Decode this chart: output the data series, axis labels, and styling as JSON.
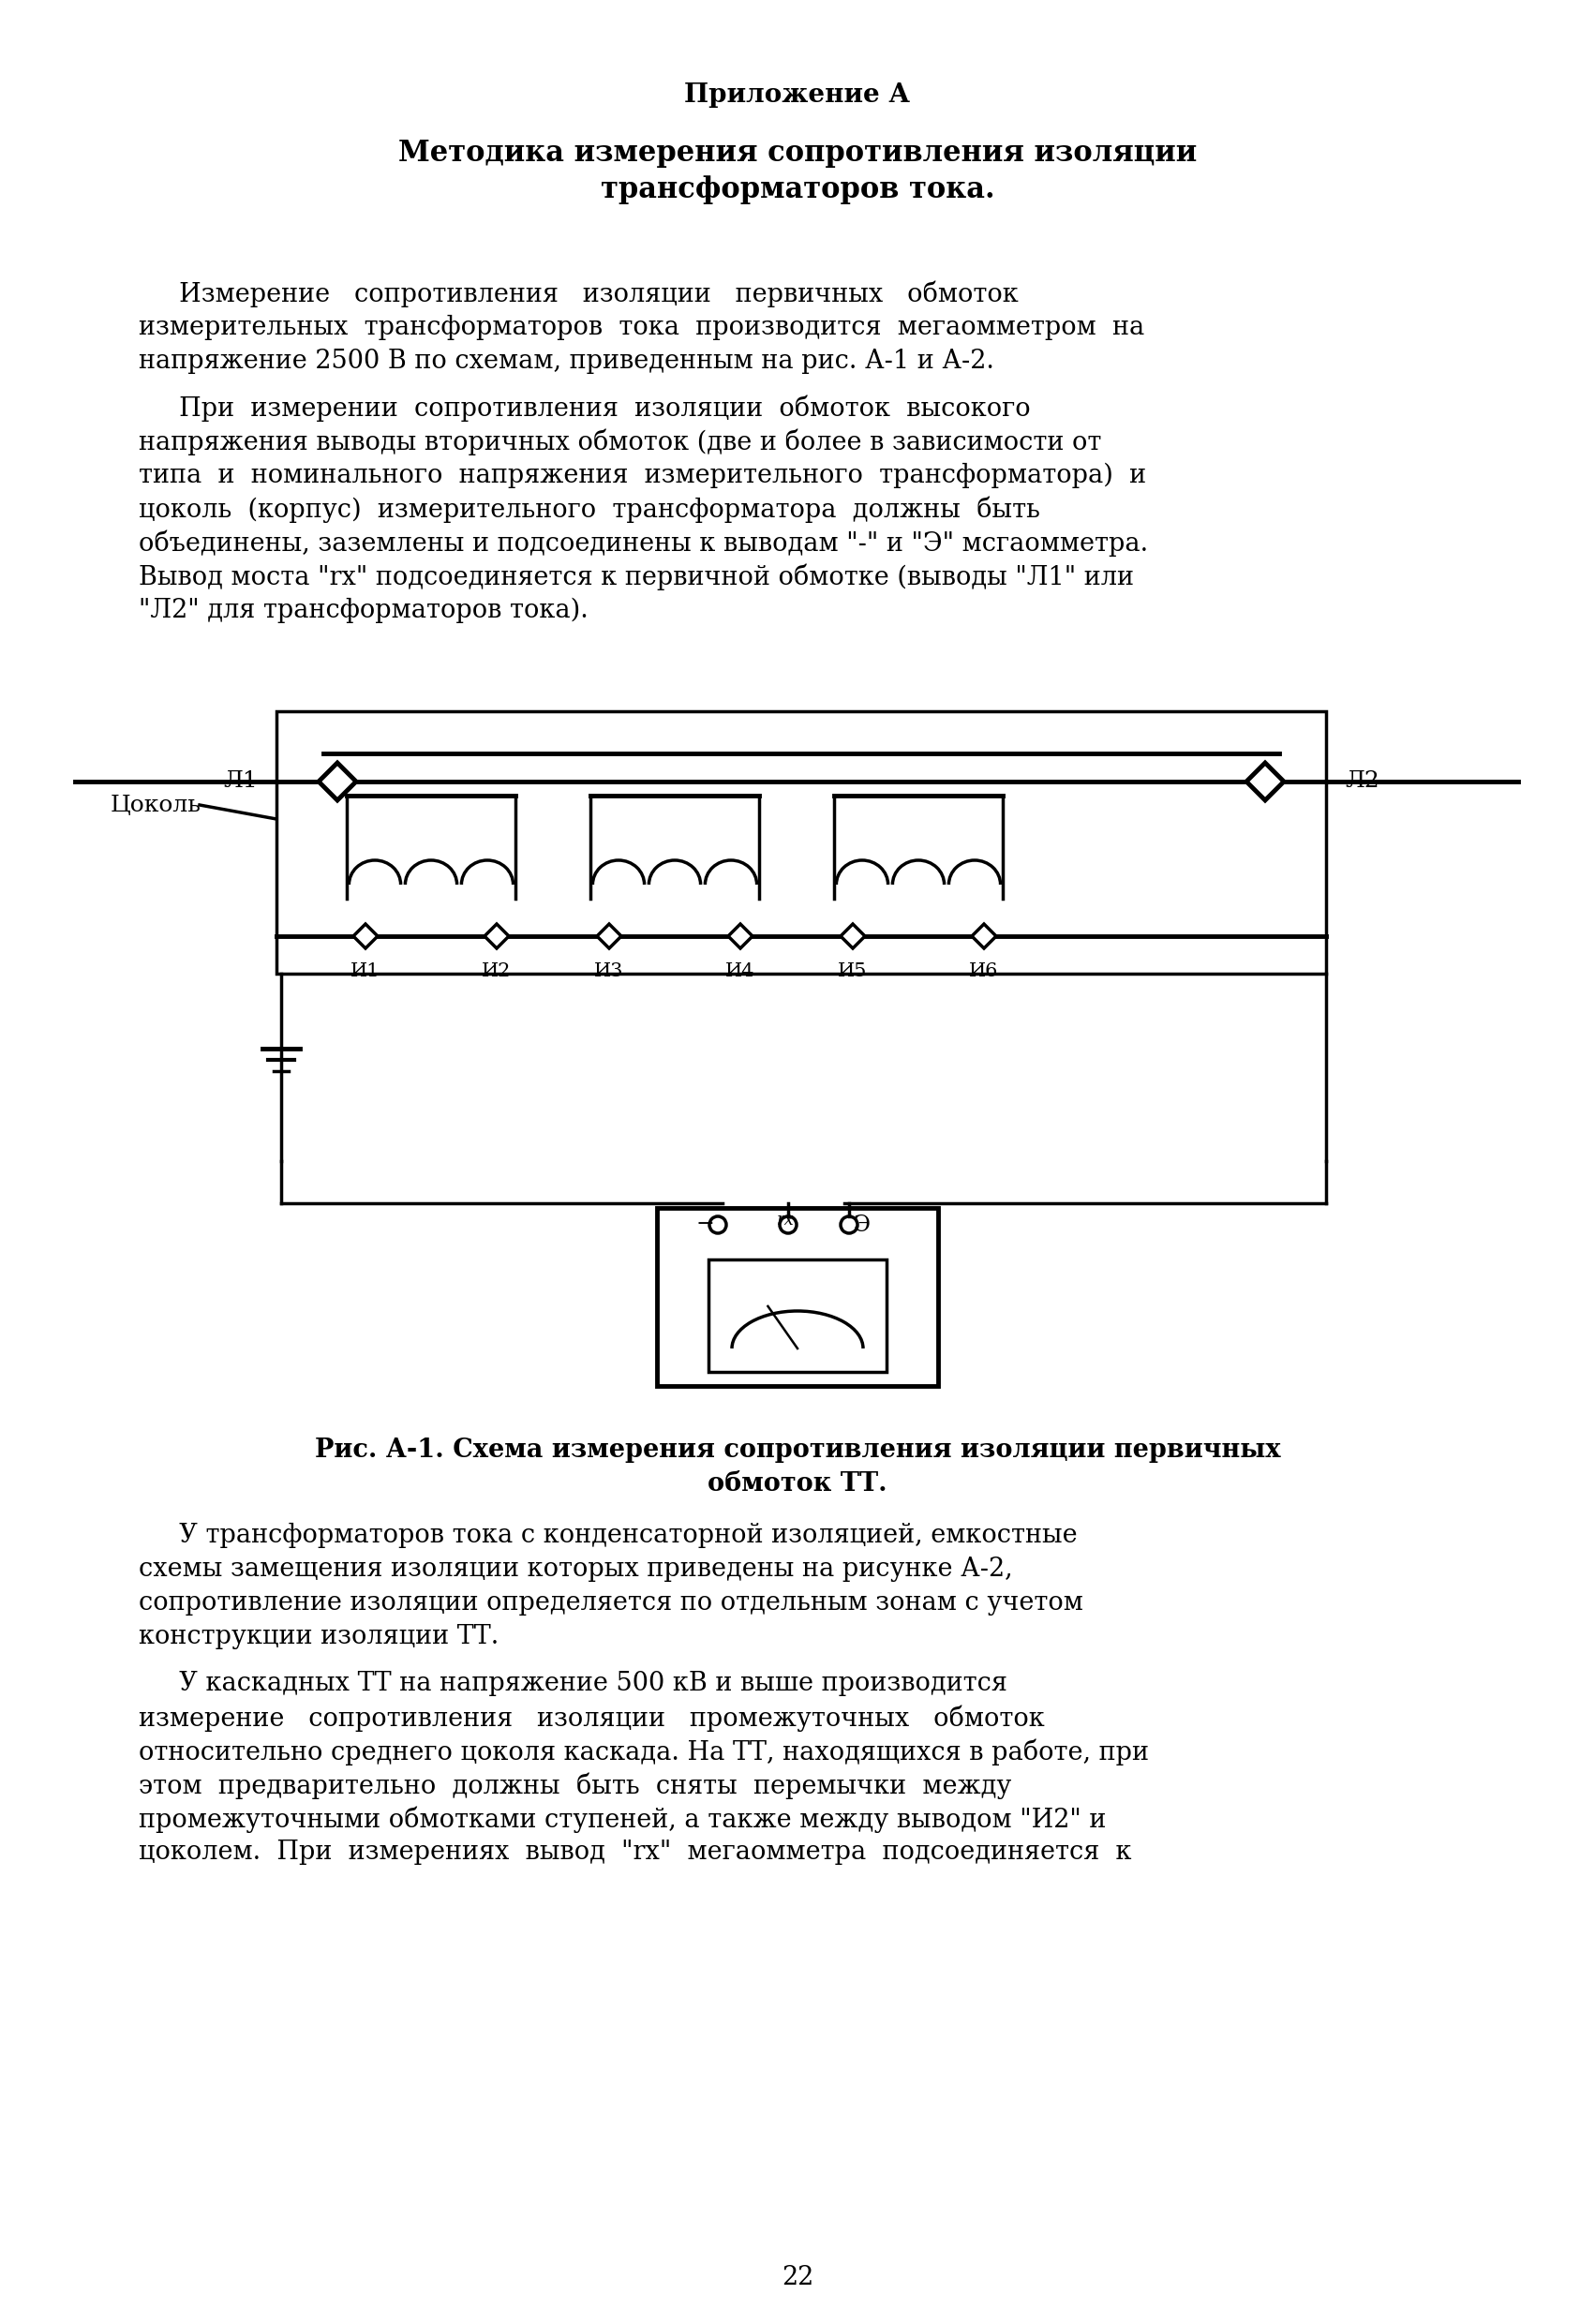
{
  "title1": "Приложение А",
  "title2": "Методика измерения сопротивления изоляции\nтрансформаторов тока.",
  "para1_line1": "     Измерение   сопротивления   изоляции   первичных   обмоток",
  "para1_line2": "измерительных  трансформаторов  тока  производится  мегаомметром  на",
  "para1_line3": "напряжение 2500 В по схемам, приведенным на рис. А-1 и А-2.",
  "para2_line1": "     При  измерении  сопротивления  изоляции  обмоток  высокого",
  "para2_line2": "напряжения выводы вторичных обмоток (две и более в зависимости от",
  "para2_line3": "типа  и  номинального  напряжения  измерительного  трансформатора)  и",
  "para2_line4": "цоколь  (корпус)  измерительного  трансформатора  должны  быть",
  "para2_line5": "объединены, заземлены и подсоединены к выводам \"-\" и \"Э\" мсгаомметра.",
  "para2_line6": "Вывод моста \"rх\" подсоединяется к первичной обмотке (выводы \"Л1\" или",
  "para2_line7": "\"Л2\" для трансформаторов тока).",
  "fig_caption_line1": "Рис. А-1. Схема измерения сопротивления изоляции первичных",
  "fig_caption_line2": "обмоток ТТ.",
  "para3_line1": "     У трансформаторов тока с конденсаторной изоляцией, емкостные",
  "para3_line2": "схемы замещения изоляции которых приведены на рисунке А-2,",
  "para3_line3": "сопротивление изоляции определяется по отдельным зонам с учетом",
  "para3_line4": "конструкции изоляции ТТ.",
  "para4_line1": "     У каскадных ТТ на напряжение 500 кВ и выше производится",
  "para4_line2": "измерение   сопротивления   изоляции   промежуточных   обмоток",
  "para4_line3": "относительно среднего цоколя каскада. На ТТ, находящихся в работе, при",
  "para4_line4": "этом  предварительно  должны  быть  сняты  перемычки  между",
  "para4_line5": "промежуточными обмотками ступеней, а также между выводом \"И2\" и",
  "para4_line6": "цоколем.  При  измерениях  вывод  \"rх\"  мегаомметра  подсоединяется  к",
  "page_num": "22",
  "background_color": "#ffffff",
  "text_color": "#000000",
  "lw_main": 2.5,
  "lw_thick": 3.5
}
